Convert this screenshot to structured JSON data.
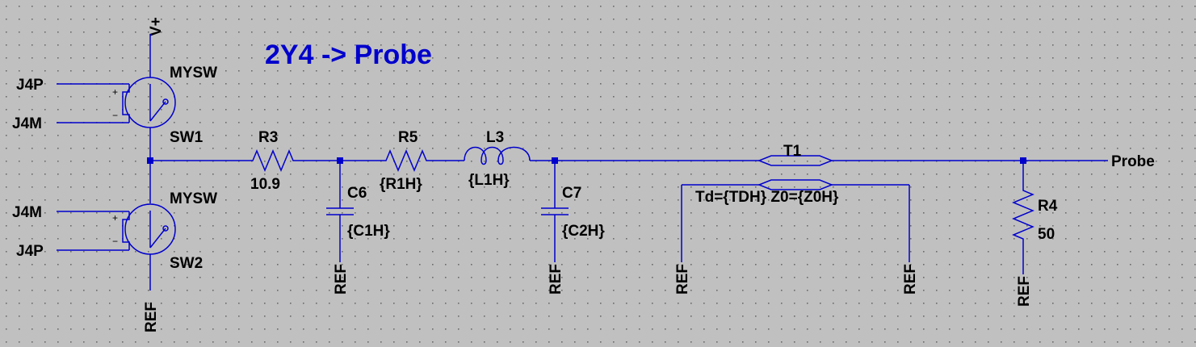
{
  "title_text": "2Y4 -> Probe",
  "supply_label": "V+",
  "ground_label": "REF",
  "output_label": "Probe",
  "colors": {
    "background": "#c0c0c0",
    "wire": "#0000cc",
    "title": "#0000cc",
    "text": "#000000"
  },
  "switches": [
    {
      "ref": "SW1",
      "model": "MYSW",
      "pin_top": "J4P",
      "pin_bottom": "J4M",
      "plus": "+",
      "minus": "−"
    },
    {
      "ref": "SW2",
      "model": "MYSW",
      "pin_top": "J4M",
      "pin_bottom": "J4P",
      "plus": "+",
      "minus": "−"
    }
  ],
  "resistors": [
    {
      "ref": "R3",
      "value": "10.9"
    },
    {
      "ref": "R5",
      "value": "{R1H}"
    },
    {
      "ref": "R4",
      "value": "50"
    }
  ],
  "inductors": [
    {
      "ref": "L3",
      "value": "{L1H}"
    }
  ],
  "capacitors": [
    {
      "ref": "C6",
      "value": "{C1H}"
    },
    {
      "ref": "C7",
      "value": "{C2H}"
    }
  ],
  "tline": {
    "ref": "T1",
    "value": "Td={TDH} Z0={Z0H}"
  }
}
